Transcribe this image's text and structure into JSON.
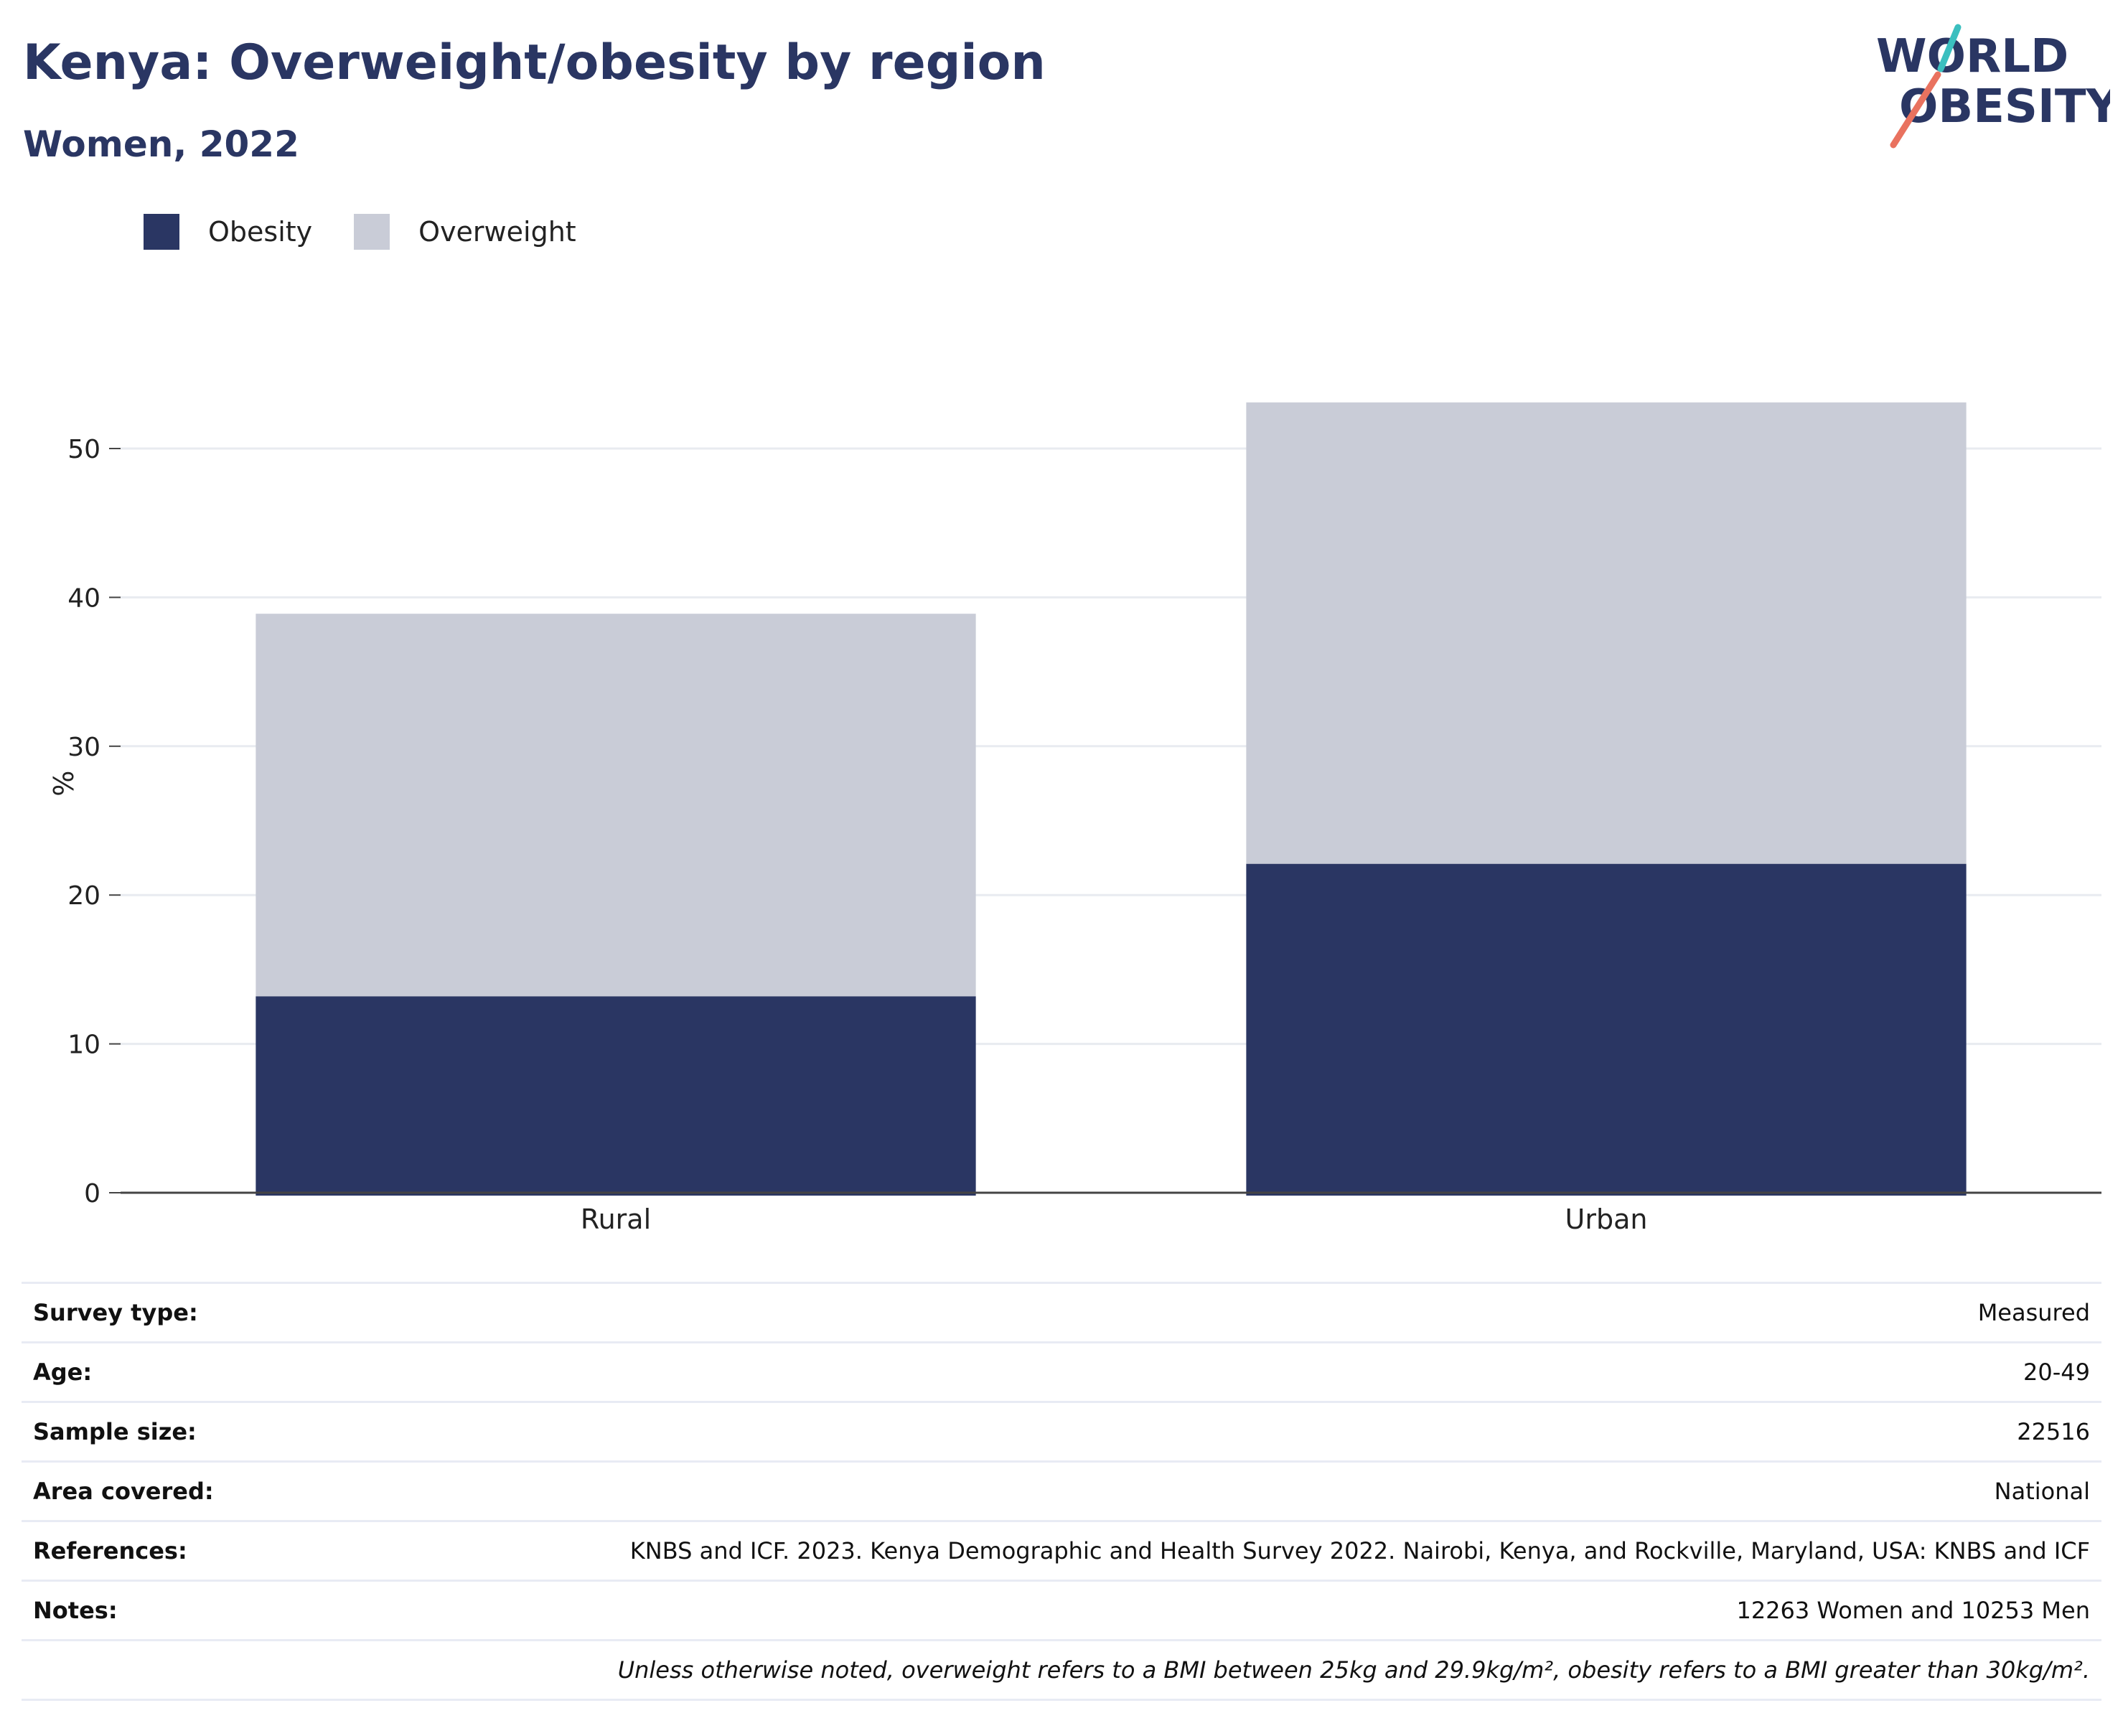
{
  "chart_data": {
    "type": "bar",
    "stacked": true,
    "title": "Kenya: Overweight/obesity by region",
    "subtitle": "Women, 2022",
    "categories": [
      "Rural",
      "Urban"
    ],
    "series": [
      {
        "name": "Obesity",
        "color": "#2a3663",
        "values": [
          13.2,
          22.1
        ]
      },
      {
        "name": "Overweight",
        "color": "#c9ccd7",
        "values": [
          25.7,
          31.0
        ]
      }
    ],
    "ylabel": "%",
    "xlabel": "",
    "ylim": [
      0,
      55
    ],
    "yticks": [
      0,
      10,
      20,
      30,
      40,
      50
    ],
    "grid": true,
    "legend_position": "top-left"
  },
  "logo": {
    "line1": "WORLD",
    "line2": "OBESITY"
  },
  "info": [
    {
      "key": "Survey type:",
      "value": "Measured"
    },
    {
      "key": "Age:",
      "value": "20-49"
    },
    {
      "key": "Sample size:",
      "value": "22516"
    },
    {
      "key": "Area covered:",
      "value": "National"
    },
    {
      "key": "References:",
      "value": "KNBS and ICF. 2023. Kenya Demographic and Health Survey 2022. Nairobi, Kenya, and Rockville, Maryland, USA: KNBS and ICF"
    },
    {
      "key": "Notes:",
      "value": "12263 Women and 10253 Men"
    }
  ],
  "footnote": "Unless otherwise noted, overweight refers to a BMI between 25kg and 29.9kg/m², obesity refers to a BMI greater than 30kg/m².",
  "colors": {
    "brand": "#2a3663",
    "overweight": "#c9ccd7",
    "logo_teal": "#3bbfbf",
    "logo_coral": "#e9725f"
  }
}
